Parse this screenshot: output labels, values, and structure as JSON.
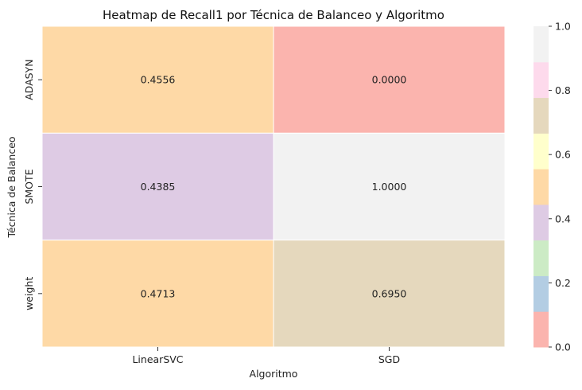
{
  "chart_data": {
    "type": "heatmap",
    "title": "Heatmap de Recall1 por Técnica de Balanceo y Algoritmo",
    "xlabel": "Algoritmo",
    "ylabel": "Técnica de Balanceo",
    "x_categories": [
      "LinearSVC",
      "SGD"
    ],
    "y_categories": [
      "ADASYN",
      "SMOTE",
      "weight"
    ],
    "values": [
      [
        0.4556,
        0.0
      ],
      [
        0.4385,
        1.0
      ],
      [
        0.4713,
        0.695
      ]
    ],
    "value_labels": [
      [
        "0.4556",
        "0.0000"
      ],
      [
        "0.4385",
        "1.0000"
      ],
      [
        "0.4713",
        "0.6950"
      ]
    ],
    "colorbar": {
      "range": [
        0.0,
        1.0
      ],
      "tick_labels": [
        "0.0",
        "0.2",
        "0.4",
        "0.6",
        "0.8",
        "1.0"
      ],
      "colors": [
        "#fbb4ae",
        "#b3cde3",
        "#ccebc5",
        "#decbe4",
        "#fed9a6",
        "#ffffcc",
        "#e5d8bd",
        "#fddaec",
        "#f2f2f2"
      ]
    }
  }
}
